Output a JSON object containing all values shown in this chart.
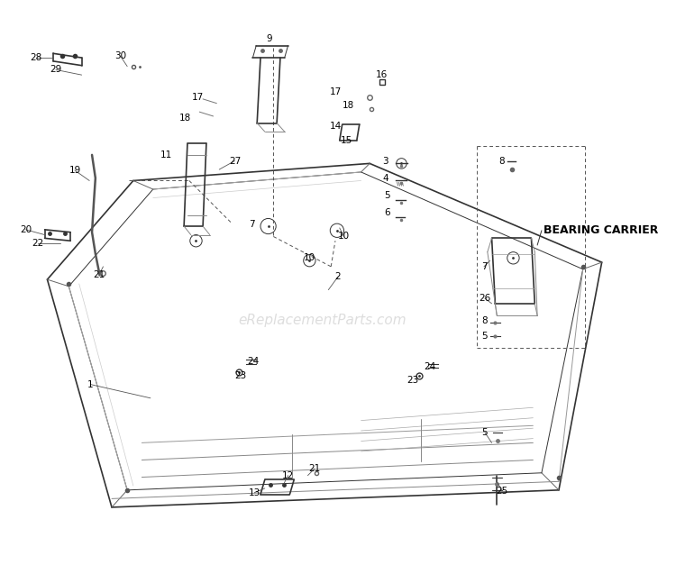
{
  "background_color": "#ffffff",
  "line_color": "#333333",
  "watermark": "eReplacementParts.com",
  "watermark_color": "#cccccc",
  "bearing_carrier_label": "BEARING CARRIER",
  "outer_frame_x": [
    55,
    130,
    650,
    700,
    430,
    155,
    55
  ],
  "outer_frame_y": [
    310,
    575,
    555,
    290,
    175,
    195,
    310
  ],
  "inner_frame_x": [
    80,
    148,
    630,
    678,
    420,
    178,
    80
  ],
  "inner_frame_y": [
    318,
    555,
    535,
    298,
    185,
    205,
    318
  ]
}
